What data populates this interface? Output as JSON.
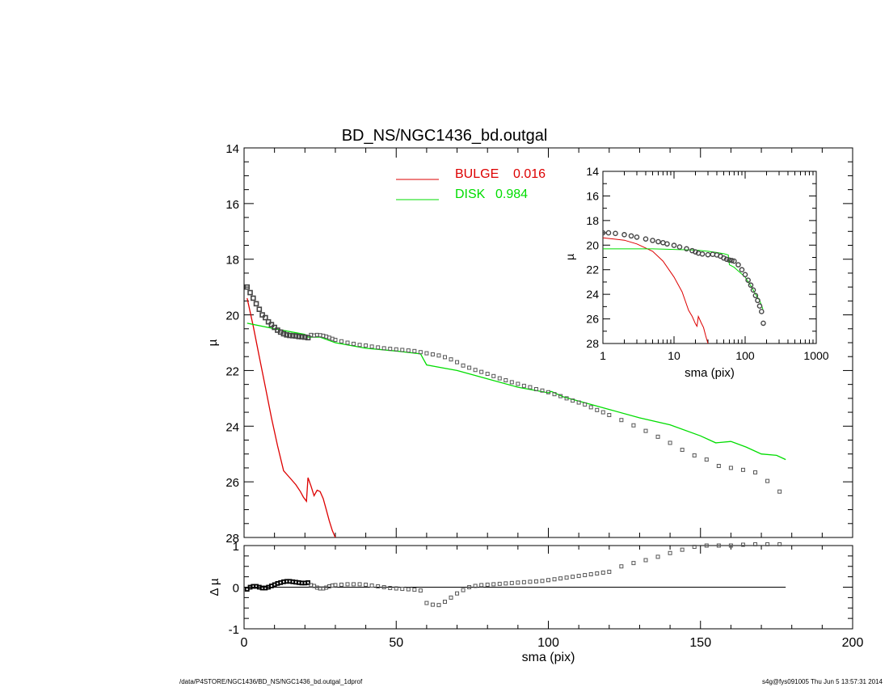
{
  "title": "BD_NS/NGC1436_bd.outgal",
  "footer_left": "/data/P4STORE/NGC1436/BD_NS/NGC1436_bd.outgal_1dprof",
  "footer_right": "s4g@fys091005  Thu Jun  5 13:57:31 2014",
  "colors": {
    "bulge": "#dd0000",
    "disk": "#00dd00",
    "data": "#000000",
    "markers": "#555555"
  },
  "chart_data": [
    {
      "type": "scatter",
      "panel": "main",
      "xlabel": "",
      "ylabel": "µ",
      "xlim": [
        0,
        200
      ],
      "ylim": [
        28,
        14
      ],
      "yticks": [
        14,
        16,
        18,
        20,
        22,
        24,
        26,
        28
      ],
      "legend": [
        {
          "name": "BULGE",
          "value": "0.016",
          "color": "#dd0000"
        },
        {
          "name": "DISK",
          "value": "0.984",
          "color": "#00dd00"
        }
      ],
      "legend_position": "top-center",
      "series": [
        {
          "name": "data",
          "kind": "markers",
          "x": [
            1,
            2,
            3,
            4,
            5,
            6,
            7,
            8,
            9,
            10,
            11,
            12,
            13,
            14,
            15,
            16,
            17,
            18,
            19,
            20,
            21,
            22,
            23,
            24,
            25,
            26,
            27,
            28,
            29,
            30,
            32,
            34,
            36,
            38,
            40,
            42,
            44,
            46,
            48,
            50,
            52,
            54,
            56,
            58,
            60,
            62,
            64,
            66,
            68,
            70,
            72,
            74,
            76,
            78,
            80,
            82,
            84,
            86,
            88,
            90,
            92,
            94,
            96,
            98,
            100,
            102,
            104,
            106,
            108,
            110,
            112,
            114,
            116,
            118,
            120,
            124,
            128,
            132,
            136,
            140,
            144,
            148,
            152,
            156,
            160,
            164,
            168,
            172,
            176
          ],
          "y": [
            19.0,
            19.2,
            19.4,
            19.6,
            19.8,
            20.0,
            20.1,
            20.25,
            20.35,
            20.45,
            20.55,
            20.62,
            20.68,
            20.72,
            20.74,
            20.75,
            20.76,
            20.78,
            20.79,
            20.8,
            20.82,
            20.72,
            20.74,
            20.72,
            20.73,
            20.75,
            20.78,
            20.82,
            20.86,
            20.9,
            20.95,
            21.0,
            21.04,
            21.08,
            21.1,
            21.14,
            21.17,
            21.2,
            21.22,
            21.24,
            21.26,
            21.28,
            21.3,
            21.34,
            21.38,
            21.42,
            21.46,
            21.52,
            21.6,
            21.7,
            21.82,
            21.9,
            21.98,
            22.05,
            22.12,
            22.2,
            22.28,
            22.35,
            22.42,
            22.48,
            22.55,
            22.6,
            22.67,
            22.72,
            22.78,
            22.85,
            22.92,
            23.0,
            23.08,
            23.15,
            23.22,
            23.32,
            23.42,
            23.5,
            23.6,
            23.78,
            23.97,
            24.17,
            24.38,
            24.6,
            24.85,
            25.05,
            25.2,
            25.43,
            25.5,
            25.57,
            25.66,
            25.97,
            26.35
          ]
        },
        {
          "name": "BULGE",
          "kind": "line",
          "x": [
            1,
            3,
            5,
            7,
            9,
            11,
            13,
            15,
            17,
            18.5,
            19.5,
            20.5,
            21,
            22,
            23,
            24,
            25,
            26,
            27,
            28,
            29,
            30
          ],
          "y": [
            19.4,
            20.4,
            21.5,
            22.6,
            23.7,
            24.7,
            25.6,
            25.85,
            26.1,
            26.35,
            26.55,
            26.7,
            25.85,
            26.15,
            26.5,
            26.3,
            26.35,
            26.6,
            27.0,
            27.4,
            27.75,
            28.0
          ]
        },
        {
          "name": "DISK",
          "kind": "line",
          "x": [
            1,
            10,
            20,
            21,
            25,
            30,
            40,
            50,
            58,
            59,
            60,
            65,
            70,
            80,
            90,
            100,
            101,
            105,
            110,
            120,
            130,
            140,
            150,
            155,
            160,
            165,
            170,
            175,
            178
          ],
          "y": [
            20.3,
            20.5,
            20.7,
            20.8,
            20.8,
            21.0,
            21.2,
            21.3,
            21.4,
            21.6,
            21.8,
            21.9,
            22.0,
            22.3,
            22.6,
            22.8,
            22.75,
            22.95,
            23.1,
            23.4,
            23.7,
            23.95,
            24.35,
            24.6,
            24.55,
            24.75,
            25.0,
            25.05,
            25.2
          ]
        }
      ]
    },
    {
      "type": "scatter",
      "panel": "residual",
      "xlabel": "sma (pix)",
      "ylabel": "Δ µ",
      "xlim": [
        0,
        200
      ],
      "ylim": [
        -1,
        1
      ],
      "xticks": [
        0,
        50,
        100,
        150,
        200
      ],
      "yticks": [
        -1,
        0,
        1
      ],
      "zero_line_x": [
        0,
        178
      ],
      "series": [
        {
          "name": "residual",
          "x": [
            1,
            2,
            3,
            4,
            5,
            6,
            7,
            8,
            9,
            10,
            11,
            12,
            13,
            14,
            15,
            16,
            17,
            18,
            19,
            20,
            21,
            22,
            23,
            24,
            25,
            26,
            27,
            28,
            29,
            30,
            32,
            34,
            36,
            38,
            40,
            42,
            44,
            46,
            48,
            50,
            52,
            54,
            56,
            58,
            60,
            62,
            64,
            66,
            68,
            70,
            72,
            74,
            76,
            78,
            80,
            82,
            84,
            86,
            88,
            90,
            92,
            94,
            96,
            98,
            100,
            102,
            104,
            106,
            108,
            110,
            112,
            114,
            116,
            118,
            120,
            124,
            128,
            132,
            136,
            140,
            144,
            148,
            152,
            156,
            160,
            164,
            168,
            172,
            176
          ],
          "y": [
            -0.05,
            0.0,
            0.02,
            0.02,
            0.0,
            -0.02,
            -0.02,
            0.0,
            0.03,
            0.06,
            0.09,
            0.11,
            0.13,
            0.14,
            0.14,
            0.13,
            0.12,
            0.11,
            0.1,
            0.1,
            0.11,
            0.05,
            0.03,
            -0.01,
            -0.03,
            -0.03,
            -0.01,
            0.02,
            0.04,
            0.05,
            0.06,
            0.07,
            0.07,
            0.07,
            0.06,
            0.04,
            0.02,
            0.0,
            -0.02,
            -0.03,
            -0.04,
            -0.05,
            -0.06,
            -0.08,
            -0.38,
            -0.42,
            -0.43,
            -0.35,
            -0.25,
            -0.15,
            -0.07,
            0.0,
            0.03,
            0.05,
            0.06,
            0.07,
            0.08,
            0.09,
            0.1,
            0.11,
            0.12,
            0.13,
            0.14,
            0.15,
            0.17,
            0.19,
            0.21,
            0.23,
            0.25,
            0.27,
            0.29,
            0.31,
            0.33,
            0.35,
            0.37,
            0.5,
            0.58,
            0.65,
            0.73,
            0.82,
            0.9,
            0.97,
            1.0,
            1.0,
            1.0,
            1.02,
            1.03,
            1.03,
            1.03
          ]
        }
      ]
    },
    {
      "type": "scatter",
      "panel": "inset",
      "xlabel": "sma (pix)",
      "ylabel": "µ",
      "xscale": "log",
      "xlim": [
        1,
        1000
      ],
      "ylim": [
        28,
        14
      ],
      "xticks": [
        1,
        10,
        100,
        1000
      ],
      "yticks": [
        14,
        16,
        18,
        20,
        22,
        24,
        26,
        28
      ],
      "series": [
        {
          "name": "data",
          "kind": "markers",
          "x": [
            1,
            1.2,
            1.5,
            2,
            2.5,
            3,
            4,
            5,
            6,
            7,
            8,
            10,
            12,
            15,
            18,
            20,
            22,
            25,
            30,
            35,
            40,
            45,
            50,
            55,
            60,
            65,
            70,
            80,
            90,
            100,
            110,
            120,
            130,
            140,
            150,
            160,
            170,
            180
          ],
          "y": [
            19.0,
            19.0,
            19.05,
            19.15,
            19.25,
            19.35,
            19.5,
            19.62,
            19.72,
            19.8,
            19.9,
            20.02,
            20.15,
            20.3,
            20.45,
            20.55,
            20.65,
            20.72,
            20.78,
            20.75,
            20.8,
            20.9,
            21.05,
            21.15,
            21.22,
            21.25,
            21.3,
            21.6,
            22.0,
            22.4,
            22.85,
            23.25,
            23.65,
            24.1,
            24.5,
            24.95,
            25.4,
            26.35
          ]
        },
        {
          "name": "BULGE",
          "kind": "line",
          "x": [
            1,
            2,
            3,
            5,
            7,
            10,
            13,
            16,
            18,
            19,
            20,
            21,
            22,
            24,
            26,
            28,
            30
          ],
          "y": [
            19.4,
            19.6,
            19.9,
            20.5,
            21.3,
            22.6,
            23.8,
            25.3,
            25.8,
            26.1,
            26.4,
            26.6,
            25.8,
            26.3,
            26.7,
            27.4,
            28.0
          ]
        },
        {
          "name": "DISK",
          "kind": "line",
          "x": [
            1,
            5,
            10,
            20,
            30,
            40,
            50,
            58,
            60,
            70,
            80,
            100,
            120,
            140,
            160,
            178
          ],
          "y": [
            20.3,
            20.3,
            20.35,
            20.4,
            20.5,
            20.6,
            20.7,
            20.8,
            21.6,
            21.8,
            22.1,
            22.6,
            23.3,
            24.0,
            24.5,
            25.2
          ]
        }
      ]
    }
  ]
}
